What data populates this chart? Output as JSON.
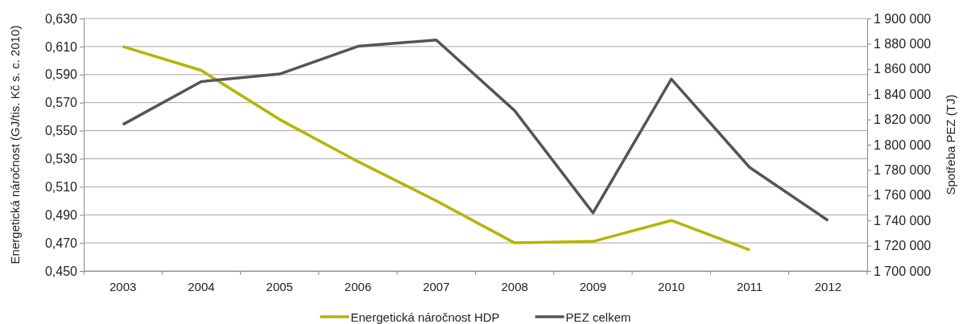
{
  "chart_data": {
    "type": "line",
    "categories": [
      "2003",
      "2004",
      "2005",
      "2006",
      "2007",
      "2008",
      "2009",
      "2010",
      "2011",
      "2012"
    ],
    "series": [
      {
        "name": "Energetická náročnost HDP",
        "color": "#b5b500",
        "values": [
          0.61,
          0.593,
          0.558,
          0.528,
          0.5,
          0.47,
          0.471,
          0.486,
          0.465,
          null
        ]
      },
      {
        "name": "PEZ celkem",
        "color": "#555555",
        "axis": "y2",
        "values": [
          1816000,
          1850000,
          1856000,
          1878000,
          1883000,
          1827000,
          1746000,
          1852000,
          1782000,
          1740000
        ]
      }
    ],
    "ylabel": "Energetická náročnost (GJ/tis. Kč s. c. 2010)",
    "y2label": "Spotřeba PEZ (TJ)",
    "ylim": [
      0.45,
      0.63
    ],
    "yticks": [
      {
        "value": 0.45,
        "label": "0,450"
      },
      {
        "value": 0.47,
        "label": "0,470"
      },
      {
        "value": 0.49,
        "label": "0,490"
      },
      {
        "value": 0.51,
        "label": "0,510"
      },
      {
        "value": 0.53,
        "label": "0,530"
      },
      {
        "value": 0.55,
        "label": "0,550"
      },
      {
        "value": 0.57,
        "label": "0,570"
      },
      {
        "value": 0.59,
        "label": "0,590"
      },
      {
        "value": 0.61,
        "label": "0,610"
      },
      {
        "value": 0.63,
        "label": "0,630"
      }
    ],
    "y2lim": [
      1700000,
      1900000
    ],
    "y2ticks": [
      {
        "value": 1700000,
        "label": "1 700 000"
      },
      {
        "value": 1720000,
        "label": "1 720 000"
      },
      {
        "value": 1740000,
        "label": "1 740 000"
      },
      {
        "value": 1760000,
        "label": "1 760 000"
      },
      {
        "value": 1780000,
        "label": "1 780 000"
      },
      {
        "value": 1800000,
        "label": "1 800 000"
      },
      {
        "value": 1820000,
        "label": "1 820 000"
      },
      {
        "value": 1840000,
        "label": "1 840 000"
      },
      {
        "value": 1860000,
        "label": "1 860 000"
      },
      {
        "value": 1880000,
        "label": "1 880 000"
      },
      {
        "value": 1900000,
        "label": "1 900 000"
      }
    ],
    "grid": "y",
    "legend": "bottom",
    "marker": "none",
    "line_style": "solid"
  }
}
